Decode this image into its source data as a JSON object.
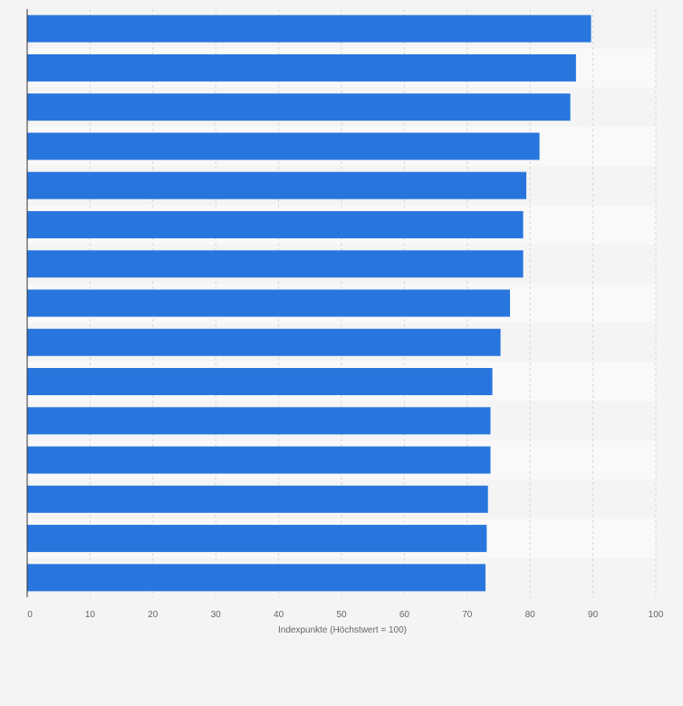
{
  "chart_data": {
    "type": "bar",
    "orientation": "horizontal",
    "title": "",
    "xlabel": "Indexpunkte (Höchstwert = 100)",
    "ylabel": "",
    "categories": [
      "",
      "",
      "",
      "",
      "",
      "",
      "",
      "",
      "",
      "",
      "",
      "",
      "",
      "",
      ""
    ],
    "values": [
      89.7,
      87.3,
      86.4,
      81.5,
      79.4,
      78.9,
      78.9,
      76.8,
      75.3,
      74.0,
      73.7,
      73.7,
      73.3,
      73.1,
      72.9
    ],
    "xlim": [
      0,
      100
    ],
    "xticks": [
      "0",
      "10",
      "20",
      "30",
      "40",
      "50",
      "60",
      "70",
      "80",
      "90",
      "100"
    ],
    "grid": "vertical dashed",
    "bar_color": "#2876dd",
    "band_colors": [
      "#f4f4f4",
      "#f9f9f9"
    ]
  }
}
